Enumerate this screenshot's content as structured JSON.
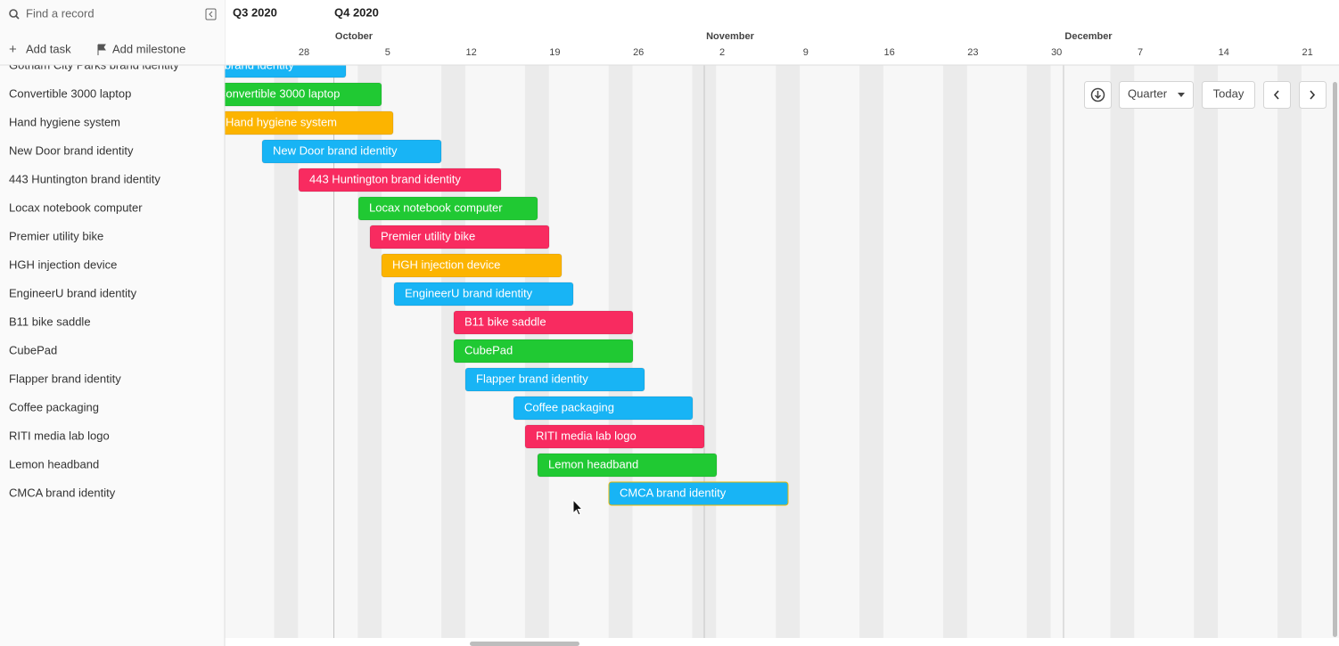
{
  "sidebar": {
    "search_placeholder": "Find a record",
    "add_task": "Add task",
    "add_milestone": "Add milestone",
    "records": [
      "Gotham City Parks brand identity",
      "Convertible 3000 laptop",
      "Hand hygiene system",
      "New Door brand identity",
      "443 Huntington brand identity",
      "Locax notebook computer",
      "Premier utility bike",
      "HGH injection device",
      "EngineerU brand identity",
      "B11 bike saddle",
      "CubePad",
      "Flapper brand identity",
      "Coffee packaging",
      "RITI media lab logo",
      "Lemon headband",
      "CMCA brand identity"
    ]
  },
  "timeline": {
    "quarters": [
      "Q3 2020",
      "Q4 2020"
    ],
    "months": [
      "October",
      "November",
      "December"
    ],
    "days": [
      "28",
      "5",
      "12",
      "19",
      "26",
      "2",
      "9",
      "16",
      "23",
      "30",
      "7",
      "14",
      "21"
    ]
  },
  "toolbar": {
    "zoom": "Quarter",
    "today": "Today"
  }
}
